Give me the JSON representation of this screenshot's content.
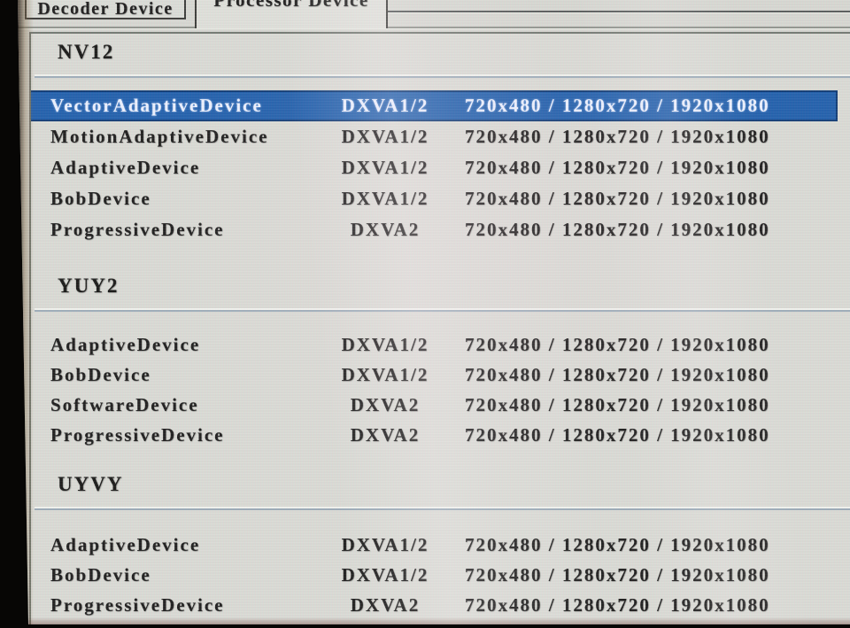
{
  "tabs": [
    {
      "label": "Decoder Device",
      "active": false
    },
    {
      "label": "Processor Device",
      "active": true
    }
  ],
  "sections": [
    {
      "format": "NV12",
      "rows": [
        {
          "device": "VectorAdaptiveDevice",
          "api": "DXVA1/2",
          "resolutions": "720x480 / 1280x720 / 1920x1080",
          "selected": true
        },
        {
          "device": "MotionAdaptiveDevice",
          "api": "DXVA1/2",
          "resolutions": "720x480 / 1280x720 / 1920x1080",
          "selected": false
        },
        {
          "device": "AdaptiveDevice",
          "api": "DXVA1/2",
          "resolutions": "720x480 / 1280x720 / 1920x1080",
          "selected": false
        },
        {
          "device": "BobDevice",
          "api": "DXVA1/2",
          "resolutions": "720x480 / 1280x720 / 1920x1080",
          "selected": false
        },
        {
          "device": "ProgressiveDevice",
          "api": "DXVA2",
          "resolutions": "720x480 / 1280x720 / 1920x1080",
          "selected": false
        }
      ]
    },
    {
      "format": "YUY2",
      "rows": [
        {
          "device": "AdaptiveDevice",
          "api": "DXVA1/2",
          "resolutions": "720x480 / 1280x720 / 1920x1080",
          "selected": false
        },
        {
          "device": "BobDevice",
          "api": "DXVA1/2",
          "resolutions": "720x480 / 1280x720 / 1920x1080",
          "selected": false
        },
        {
          "device": "SoftwareDevice",
          "api": "DXVA2",
          "resolutions": "720x480 / 1280x720 / 1920x1080",
          "selected": false
        },
        {
          "device": "ProgressiveDevice",
          "api": "DXVA2",
          "resolutions": "720x480 / 1280x720 / 1920x1080",
          "selected": false
        }
      ]
    },
    {
      "format": "UYVY",
      "rows": [
        {
          "device": "AdaptiveDevice",
          "api": "DXVA1/2",
          "resolutions": "720x480 / 1280x720 / 1920x1080",
          "selected": false
        },
        {
          "device": "BobDevice",
          "api": "DXVA1/2",
          "resolutions": "720x480 / 1280x720 / 1920x1080",
          "selected": false
        },
        {
          "device": "ProgressiveDevice",
          "api": "DXVA2",
          "resolutions": "720x480 / 1280x720 / 1920x1080",
          "selected": false
        }
      ]
    }
  ],
  "colors": {
    "selection_bg": "#2160ac",
    "selection_border": "#0e3a74",
    "selection_text": "#edf3ff",
    "panel_bg": "#dbdcd5",
    "text": "#1c1c1a"
  }
}
